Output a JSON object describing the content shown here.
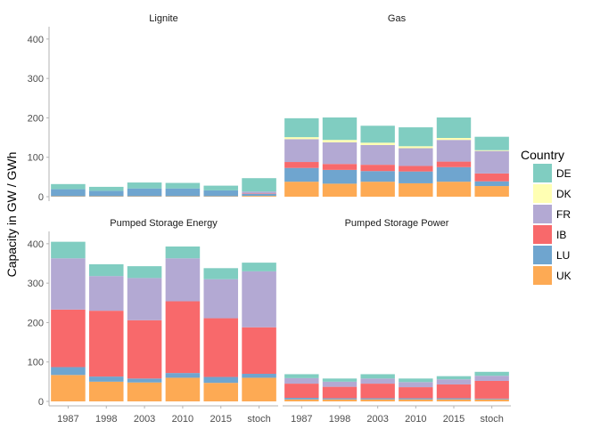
{
  "chart_data": {
    "type": "bar",
    "stacked": true,
    "facet_layout": "2x2",
    "categories": [
      "1987",
      "1998",
      "2003",
      "2010",
      "2015",
      "stoch"
    ],
    "ylabel": "Capacity in GW / GWh",
    "ylim": [
      0,
      420
    ],
    "yticks": [
      0,
      100,
      200,
      300,
      400
    ],
    "grid": false,
    "legend": {
      "title": "Country",
      "position": "right",
      "entries": [
        {
          "name": "DE",
          "color": "#80cdc1"
        },
        {
          "name": "DK",
          "color": "#ffffb3"
        },
        {
          "name": "FR",
          "color": "#b3a9d3"
        },
        {
          "name": "IB",
          "color": "#f8696b"
        },
        {
          "name": "LU",
          "color": "#6fa5cf"
        },
        {
          "name": "UK",
          "color": "#fdaa54"
        }
      ]
    },
    "stack_order_bottom_to_top": [
      "UK",
      "LU",
      "IB",
      "FR",
      "DK",
      "DE"
    ],
    "panels": [
      {
        "title": "Lignite",
        "series": [
          {
            "name": "UK",
            "values": [
              1,
              1,
              1,
              1,
              1,
              2
            ]
          },
          {
            "name": "LU",
            "values": [
              18,
              14,
              20,
              20,
              15,
              5
            ]
          },
          {
            "name": "IB",
            "values": [
              0,
              0,
              0,
              0,
              0,
              1
            ]
          },
          {
            "name": "FR",
            "values": [
              0,
              0,
              0,
              0,
              0,
              5
            ]
          },
          {
            "name": "DK",
            "values": [
              0,
              0,
              0,
              0,
              0,
              0
            ]
          },
          {
            "name": "DE",
            "values": [
              13,
              10,
              15,
              14,
              12,
              34
            ]
          }
        ]
      },
      {
        "title": "Gas",
        "series": [
          {
            "name": "UK",
            "values": [
              38,
              33,
              38,
              34,
              38,
              27
            ]
          },
          {
            "name": "LU",
            "values": [
              35,
              35,
              27,
              30,
              37,
              12
            ]
          },
          {
            "name": "IB",
            "values": [
              15,
              15,
              16,
              14,
              14,
              20
            ]
          },
          {
            "name": "FR",
            "values": [
              58,
              55,
              50,
              45,
              55,
              57
            ]
          },
          {
            "name": "DK",
            "values": [
              5,
              6,
              6,
              5,
              5,
              2
            ]
          },
          {
            "name": "DE",
            "values": [
              48,
              57,
              43,
              48,
              52,
              34
            ]
          }
        ]
      },
      {
        "title": "Pumped Storage Energy",
        "series": [
          {
            "name": "UK",
            "values": [
              67,
              50,
              48,
              60,
              47,
              60
            ]
          },
          {
            "name": "LU",
            "values": [
              20,
              13,
              10,
              12,
              15,
              10
            ]
          },
          {
            "name": "IB",
            "values": [
              146,
              167,
              148,
              182,
              149,
              118
            ]
          },
          {
            "name": "FR",
            "values": [
              130,
              88,
              107,
              109,
              99,
              142
            ]
          },
          {
            "name": "DK",
            "values": [
              0,
              0,
              0,
              0,
              0,
              0
            ]
          },
          {
            "name": "DE",
            "values": [
              42,
              30,
              30,
              30,
              28,
              22
            ]
          }
        ]
      },
      {
        "title": "Pumped Storage Power",
        "series": [
          {
            "name": "UK",
            "values": [
              5,
              5,
              5,
              5,
              5,
              5
            ]
          },
          {
            "name": "LU",
            "values": [
              4,
              3,
              3,
              3,
              3,
              2
            ]
          },
          {
            "name": "IB",
            "values": [
              36,
              29,
              37,
              28,
              35,
              45
            ]
          },
          {
            "name": "FR",
            "values": [
              14,
              13,
              13,
              13,
              13,
              13
            ]
          },
          {
            "name": "DK",
            "values": [
              0,
              0,
              0,
              0,
              0,
              0
            ]
          },
          {
            "name": "DE",
            "values": [
              10,
              8,
              11,
              9,
              8,
              10
            ]
          }
        ]
      }
    ]
  }
}
